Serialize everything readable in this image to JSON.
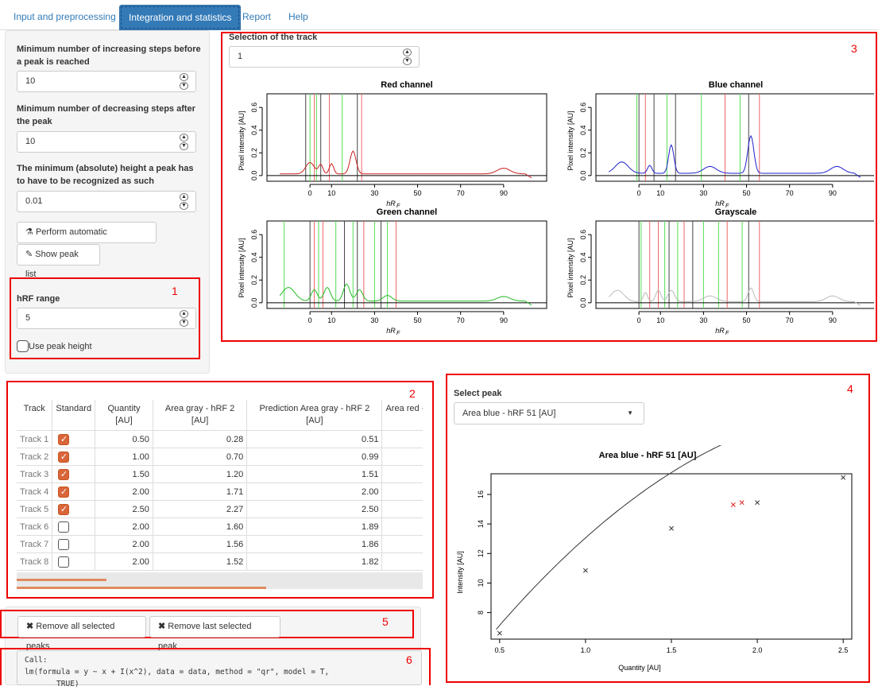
{
  "tabs": [
    {
      "label": "Input and preprocessing"
    },
    {
      "label": "Integration and statistics"
    },
    {
      "label": "Report"
    },
    {
      "label": "Help"
    }
  ],
  "sidebar": {
    "min_increasing_label": "Minimum number of increasing steps before a peak is reached",
    "min_increasing_value": "10",
    "min_decreasing_label": "Minimum number of decreasing steps after the peak",
    "min_decreasing_value": "10",
    "min_height_label": "The minimum (absolute) height a peak has to have to be recognized as such",
    "min_height_value": "0.01",
    "perform_button": "Perform automatic integration",
    "show_peaks_button": "Show peak list",
    "hrf_range_label": "hRF range",
    "hrf_range_value": "5",
    "use_peak_height_label": "Use peak height"
  },
  "annotations": {
    "n1": "1",
    "n2": "2",
    "n3": "3",
    "n4": "4",
    "n5": "5",
    "n6": "6"
  },
  "track_selection": {
    "label": "Selection of the track",
    "value": "1"
  },
  "channel_plots": {
    "ylabel": "Pixel intensity [AU]",
    "xlabel": "hR",
    "xlabel_sub": "F",
    "ytick_labels": [
      "0.0",
      "0.2",
      "0.4",
      "0.6"
    ],
    "xtick_labels": [
      "0",
      "10",
      "30",
      "50",
      "70",
      "90"
    ],
    "titles": {
      "red": "Red channel",
      "blue": "Blue channel",
      "green": "Green channel",
      "gray": "Grayscale"
    },
    "colors": {
      "red": "#cc2222",
      "blue": "#2222cc",
      "green": "#22bb22",
      "gray": "#bbbbbb"
    }
  },
  "peak_table": {
    "headers": [
      "Track",
      "Standard",
      "Quantity [AU]",
      "Area gray - hRF 2 [AU]",
      "Prediction Area gray - hRF 2 [AU]",
      "Area red -"
    ],
    "rows": [
      {
        "track": "Track 1",
        "standard": true,
        "quantity": "0.50",
        "area": "0.28",
        "prediction": "0.51"
      },
      {
        "track": "Track 2",
        "standard": true,
        "quantity": "1.00",
        "area": "0.70",
        "prediction": "0.99"
      },
      {
        "track": "Track 3",
        "standard": true,
        "quantity": "1.50",
        "area": "1.20",
        "prediction": "1.51"
      },
      {
        "track": "Track 4",
        "standard": true,
        "quantity": "2.00",
        "area": "1.71",
        "prediction": "2.00"
      },
      {
        "track": "Track 5",
        "standard": true,
        "quantity": "2.50",
        "area": "2.27",
        "prediction": "2.50"
      },
      {
        "track": "Track 6",
        "standard": false,
        "quantity": "2.00",
        "area": "1.60",
        "prediction": "1.89"
      },
      {
        "track": "Track 7",
        "standard": false,
        "quantity": "2.00",
        "area": "1.56",
        "prediction": "1.86"
      },
      {
        "track": "Track 8",
        "standard": false,
        "quantity": "2.00",
        "area": "1.52",
        "prediction": "1.82"
      }
    ]
  },
  "peak_buttons": {
    "remove_all": "Remove all selected peaks",
    "remove_last": "Remove last selected peak"
  },
  "model_output": {
    "line1": "Call:",
    "line2": "lm(formula = y ~ x + I(x^2), data = data, method = \"qr\", model = T,",
    "line3": "       TRUE)"
  },
  "select_peak": {
    "label": "Select peak",
    "value": "Area blue - hRF 51 [AU]"
  },
  "chart_data": {
    "type": "scatter",
    "title": "Area blue - hRF 51 [AU]",
    "xlabel": "Quantity [AU]",
    "ylabel": "Intensity [AU]",
    "xlim": [
      0.45,
      2.55
    ],
    "ylim": [
      6.2,
      17.4
    ],
    "xticks": [
      "0.5",
      "1.0",
      "1.5",
      "2.0",
      "2.5"
    ],
    "yticks": [
      "8",
      "10",
      "12",
      "14",
      "16"
    ],
    "points": [
      {
        "x": 0.5,
        "y": 6.6,
        "color": "#333333"
      },
      {
        "x": 1.0,
        "y": 10.85,
        "color": "#333333"
      },
      {
        "x": 1.5,
        "y": 13.7,
        "color": "#333333"
      },
      {
        "x": 1.86,
        "y": 15.3,
        "color": "#dd2222"
      },
      {
        "x": 1.91,
        "y": 15.45,
        "color": "#dd2222"
      },
      {
        "x": 2.0,
        "y": 15.45,
        "color": "#333333"
      },
      {
        "x": 2.5,
        "y": 17.15,
        "color": "#333333"
      }
    ],
    "fit": {
      "a": -0.3,
      "b": 16.37,
      "c": -3.01
    }
  }
}
